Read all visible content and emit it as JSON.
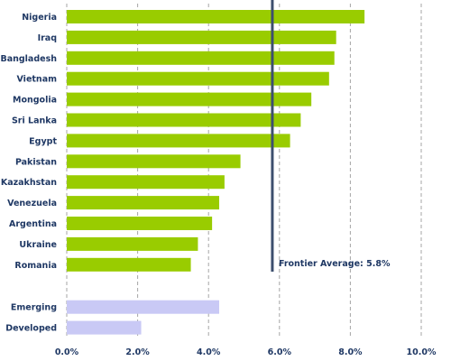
{
  "chart_data": {
    "type": "bar",
    "orientation": "horizontal",
    "title": "",
    "xlabel": "",
    "ylabel": "",
    "xlim": [
      0,
      10
    ],
    "grid": true,
    "legend": "none",
    "categories": [
      "Nigeria",
      "Iraq",
      "Bangladesh",
      "Vietnam",
      "Mongolia",
      "Sri Lanka",
      "Egypt",
      "Pakistan",
      "Kazakhstan",
      "Venezuela",
      "Argentina",
      "Ukraine",
      "Romania",
      "Emerging",
      "Developed"
    ],
    "values": [
      8.4,
      7.6,
      7.55,
      7.4,
      6.9,
      6.6,
      6.3,
      4.9,
      4.45,
      4.3,
      4.1,
      3.7,
      3.5,
      4.3,
      2.1
    ],
    "bar_colors": [
      "#99cc00",
      "#99cc00",
      "#99cc00",
      "#99cc00",
      "#99cc00",
      "#99cc00",
      "#99cc00",
      "#99cc00",
      "#99cc00",
      "#99cc00",
      "#99cc00",
      "#99cc00",
      "#99cc00",
      "#c9c9f5",
      "#c9c9f5"
    ],
    "x_ticks": [
      0,
      2,
      4,
      6,
      8,
      10
    ],
    "x_tick_labels": [
      "0.0%",
      "2.0%",
      "4.0%",
      "6.0%",
      "8.0%",
      "10.0%"
    ],
    "reference_line": {
      "value": 5.8,
      "label": "Frontier Average: 5.8%",
      "color": "#3d4f6e"
    }
  }
}
